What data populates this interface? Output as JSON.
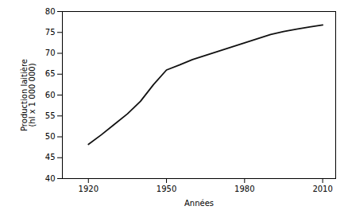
{
  "chart_data": {
    "type": "line",
    "x": [
      1920,
      1925,
      1930,
      1935,
      1940,
      1945,
      1950,
      1955,
      1960,
      1965,
      1970,
      1975,
      1980,
      1985,
      1990,
      1995,
      2000,
      2005,
      2010
    ],
    "values": [
      48.2,
      50.5,
      53.0,
      55.5,
      58.5,
      62.5,
      66.0,
      67.2,
      68.5,
      69.5,
      70.5,
      71.5,
      72.5,
      73.5,
      74.5,
      75.2,
      75.8,
      76.3,
      76.8
    ],
    "xlabel": "Années",
    "ylabel": "Production laitière\n(hl x 1 000 000)",
    "xlim": [
      1910,
      2015
    ],
    "ylim": [
      40,
      80
    ],
    "xticks": [
      1920,
      1950,
      1980,
      2010
    ],
    "yticks": [
      40,
      45,
      50,
      55,
      60,
      65,
      70,
      75,
      80
    ],
    "color": "#111111"
  }
}
